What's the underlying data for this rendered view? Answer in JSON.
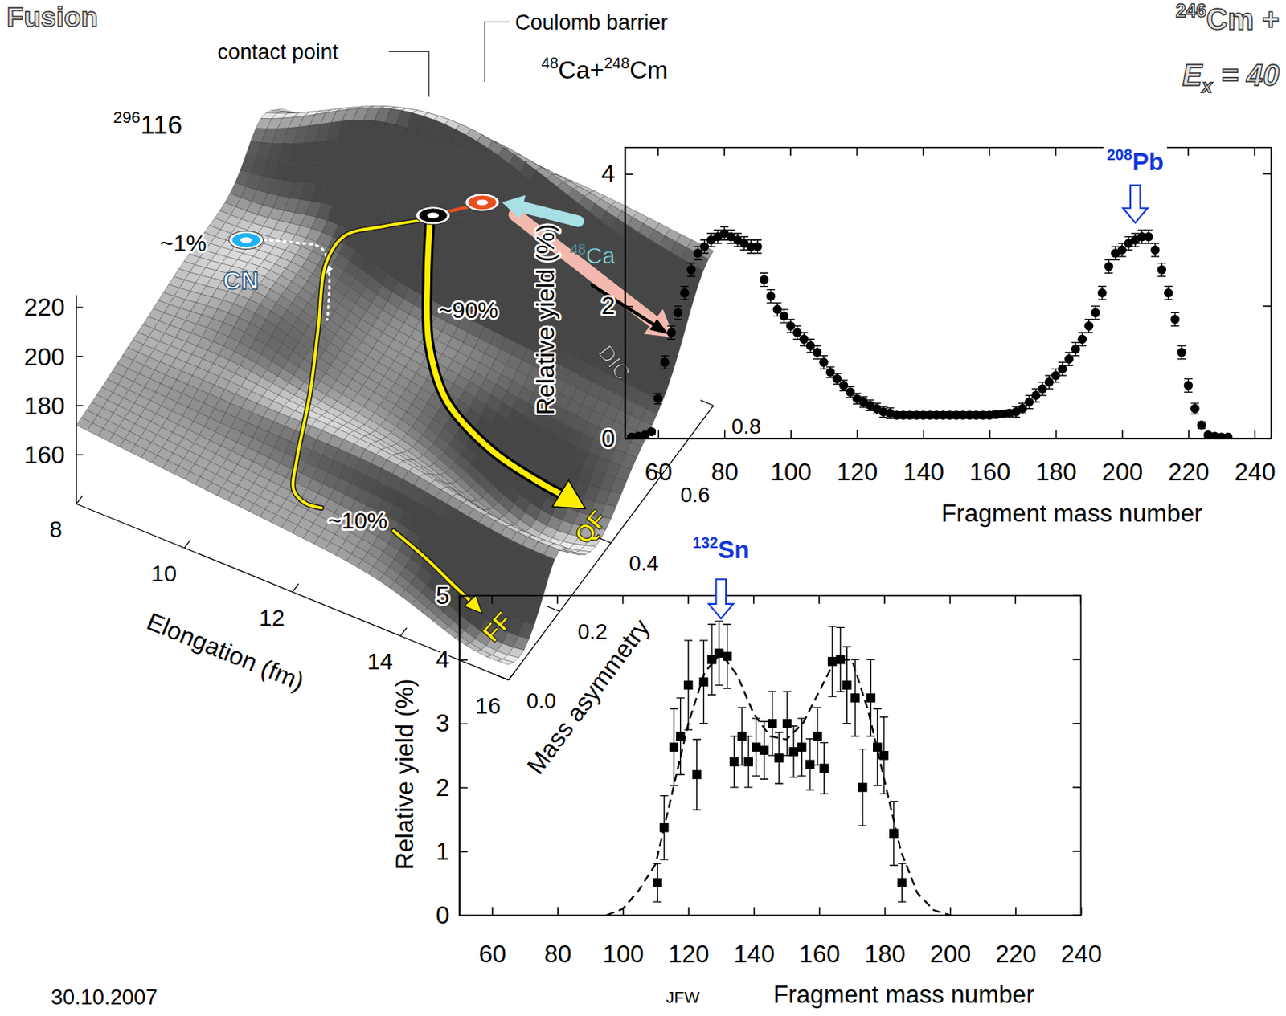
{
  "slide": {
    "title": "Fusion",
    "reaction": {
      "sup": "246",
      "text": "Cm +"
    },
    "excitation": {
      "symbol": "E",
      "sub": "x",
      "text": "= 40"
    },
    "date": "30.10.2007",
    "author": "JFW"
  },
  "diagram": {
    "type": "surface",
    "system": {
      "sup": "296",
      "text": "116"
    },
    "entrance": [
      {
        "sup": "48",
        "text": "Ca+"
      },
      {
        "sup": "248",
        "text": "Cm"
      }
    ],
    "contact_label": "contact point",
    "barrier_label": "Coulomb barrier",
    "cn_label": "CN",
    "qf_label": "QF",
    "ff_label": "FF",
    "dic_label": "DIC",
    "projectile": {
      "sup": "48",
      "text": "Ca"
    },
    "path_labels": [
      "~1%",
      "~90%",
      "~10%"
    ],
    "x_label": "Elongation  (fm)",
    "xlim": [
      8,
      16
    ],
    "xticks": [
      8,
      10,
      12,
      14,
      16
    ],
    "y_label": "Mass asymmetry",
    "ylim": [
      0,
      0.8
    ],
    "yticks": [
      {
        "value": 0,
        "label": "0.0"
      },
      0.2,
      0.4,
      0.6,
      0.8
    ],
    "zlim": [
      140,
      225
    ],
    "zticks": [
      160,
      180,
      200,
      220
    ]
  },
  "chart_data": [
    {
      "type": "scatter",
      "x_label": "Fragment mass number",
      "y_label": "Relative yield (%)",
      "xlim": [
        50,
        245
      ],
      "xticks": [
        60,
        80,
        100,
        120,
        140,
        160,
        180,
        200,
        220,
        240
      ],
      "ylim": [
        0,
        4.4
      ],
      "yticks": [
        0,
        2,
        4
      ],
      "annotations": [
        {
          "x": 204,
          "sup": "208",
          "text": "Pb",
          "color": "#1237d8"
        }
      ],
      "series": [
        {
          "type": "scatter",
          "marker": "circle",
          "color": "#000000",
          "x": [
            52,
            54,
            56,
            58,
            60,
            62,
            64,
            66,
            68,
            70,
            72,
            74,
            76,
            78,
            80,
            82,
            84,
            86,
            88,
            90,
            92,
            94,
            96,
            98,
            100,
            102,
            104,
            106,
            108,
            110,
            112,
            114,
            116,
            118,
            120,
            122,
            124,
            126,
            128,
            130,
            132,
            134,
            136,
            138,
            140,
            142,
            144,
            146,
            148,
            150,
            152,
            154,
            156,
            158,
            160,
            162,
            164,
            166,
            168,
            170,
            172,
            174,
            176,
            178,
            180,
            182,
            184,
            186,
            188,
            190,
            192,
            194,
            196,
            198,
            200,
            202,
            204,
            206,
            208,
            210,
            212,
            214,
            216,
            218,
            220,
            222,
            224,
            226,
            228,
            230,
            232
          ],
          "values": [
            0.02,
            0.03,
            0.05,
            0.1,
            0.6,
            1.15,
            1.6,
            1.9,
            2.2,
            2.55,
            2.8,
            2.9,
            3.0,
            3.05,
            3.1,
            3.05,
            3.0,
            2.95,
            2.9,
            2.9,
            2.4,
            2.15,
            1.95,
            1.85,
            1.7,
            1.6,
            1.5,
            1.4,
            1.3,
            1.15,
            1.0,
            0.9,
            0.8,
            0.7,
            0.6,
            0.55,
            0.5,
            0.45,
            0.4,
            0.38,
            0.35,
            0.35,
            0.35,
            0.35,
            0.35,
            0.35,
            0.35,
            0.35,
            0.35,
            0.35,
            0.35,
            0.35,
            0.35,
            0.35,
            0.35,
            0.36,
            0.37,
            0.38,
            0.4,
            0.45,
            0.55,
            0.65,
            0.75,
            0.85,
            0.95,
            1.05,
            1.2,
            1.35,
            1.5,
            1.7,
            1.9,
            2.2,
            2.6,
            2.8,
            2.85,
            2.95,
            3.0,
            3.05,
            3.05,
            2.85,
            2.55,
            2.2,
            1.8,
            1.3,
            0.8,
            0.45,
            0.2,
            0.05,
            0.03,
            0.02,
            0.02
          ],
          "errors": [
            0.02,
            0.02,
            0.02,
            0.03,
            0.08,
            0.1,
            0.1,
            0.1,
            0.1,
            0.1,
            0.1,
            0.1,
            0.1,
            0.1,
            0.1,
            0.1,
            0.1,
            0.1,
            0.1,
            0.1,
            0.1,
            0.1,
            0.1,
            0.1,
            0.1,
            0.1,
            0.1,
            0.1,
            0.1,
            0.1,
            0.08,
            0.08,
            0.08,
            0.08,
            0.08,
            0.08,
            0.08,
            0.08,
            0.08,
            0.08,
            0.05,
            0.05,
            0.05,
            0.05,
            0.05,
            0.05,
            0.05,
            0.05,
            0.05,
            0.05,
            0.05,
            0.05,
            0.05,
            0.05,
            0.05,
            0.05,
            0.05,
            0.05,
            0.08,
            0.08,
            0.1,
            0.1,
            0.1,
            0.1,
            0.1,
            0.1,
            0.1,
            0.1,
            0.1,
            0.1,
            0.1,
            0.1,
            0.1,
            0.1,
            0.1,
            0.1,
            0.1,
            0.1,
            0.1,
            0.1,
            0.1,
            0.1,
            0.1,
            0.1,
            0.1,
            0.08,
            0.05,
            0.03,
            0.02,
            0.02,
            0.02
          ]
        }
      ]
    },
    {
      "type": "scatter",
      "x_label": "Fragment mass number",
      "y_label": "Relative yield (%)",
      "xlim": [
        50,
        240
      ],
      "xticks": [
        60,
        80,
        100,
        120,
        140,
        160,
        180,
        200,
        220,
        240
      ],
      "ylim": [
        0,
        5
      ],
      "yticks": [
        0,
        1,
        2,
        3,
        4,
        5
      ],
      "annotations": [
        {
          "x": 130,
          "sup": "132",
          "text": "Sn",
          "color": "#1237d8"
        }
      ],
      "series": [
        {
          "type": "scatter",
          "marker": "square",
          "color": "#000000",
          "x": [
            110.6,
            112.6,
            115.6,
            117.6,
            120,
            122.6,
            124.7,
            127.2,
            129.4,
            131.9,
            134,
            136.4,
            138.4,
            140.7,
            143.2,
            145.7,
            147.7,
            150.2,
            152.2,
            154.7,
            157.2,
            159.5,
            161.5,
            164,
            166.5,
            168.5,
            171,
            173.3,
            175.8,
            177.8,
            179.8,
            182.8,
            185.3
          ],
          "values": [
            0.51,
            1.37,
            2.63,
            2.8,
            3.6,
            2.2,
            3.65,
            4.0,
            4.1,
            4.05,
            2.4,
            2.8,
            2.4,
            2.63,
            2.58,
            3.0,
            2.46,
            3.0,
            2.56,
            2.63,
            2.36,
            2.8,
            2.3,
            3.97,
            4.0,
            3.6,
            3.4,
            2.0,
            3.4,
            2.63,
            2.5,
            1.28,
            0.51
          ],
          "errors": [
            0.3,
            0.5,
            0.6,
            0.6,
            0.7,
            0.55,
            0.65,
            0.55,
            0.5,
            0.5,
            0.4,
            0.45,
            0.4,
            0.45,
            0.45,
            0.5,
            0.4,
            0.5,
            0.4,
            0.45,
            0.4,
            0.45,
            0.4,
            0.55,
            0.5,
            0.6,
            0.6,
            0.6,
            0.6,
            0.6,
            0.6,
            0.5,
            0.3
          ]
        },
        {
          "type": "line",
          "line_style": "dashed",
          "color": "#000000",
          "x": [
            95,
            100,
            105,
            110,
            115,
            120,
            125,
            130,
            135,
            140,
            145,
            150,
            155,
            160,
            165,
            170,
            175,
            180,
            185,
            190,
            195,
            200
          ],
          "values": [
            0.0,
            0.1,
            0.4,
            0.8,
            1.9,
            3.0,
            3.8,
            4.1,
            3.75,
            3.15,
            2.8,
            2.75,
            3.0,
            3.5,
            4.0,
            4.0,
            3.2,
            2.1,
            1.0,
            0.35,
            0.08,
            0.0
          ]
        }
      ]
    }
  ]
}
